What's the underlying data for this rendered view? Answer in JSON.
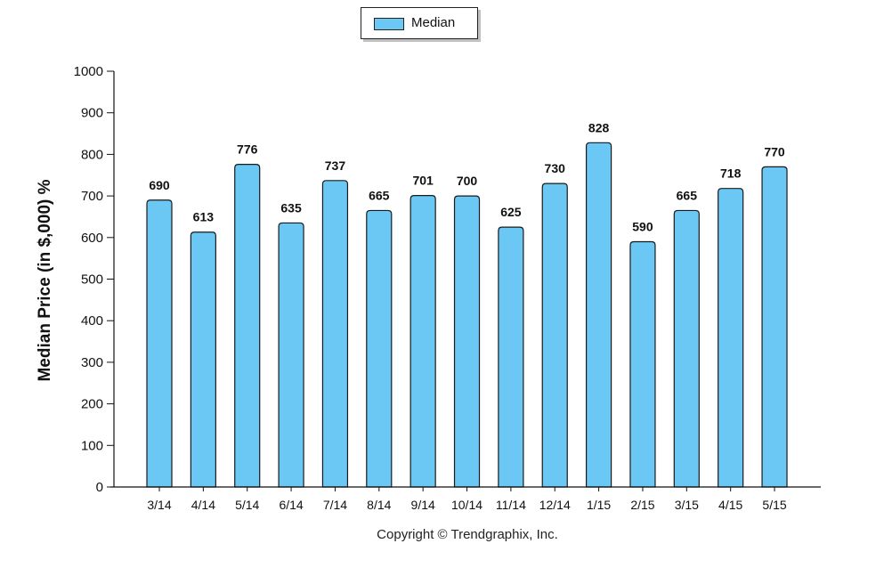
{
  "chart_data": {
    "type": "bar",
    "categories": [
      "3/14",
      "4/14",
      "5/14",
      "6/14",
      "7/14",
      "8/14",
      "9/14",
      "10/14",
      "11/14",
      "12/14",
      "1/15",
      "2/15",
      "3/15",
      "4/15",
      "5/15"
    ],
    "series": [
      {
        "name": "Median",
        "values": [
          690,
          613,
          776,
          635,
          737,
          665,
          701,
          700,
          625,
          730,
          828,
          590,
          665,
          718,
          770
        ]
      }
    ],
    "data_labels": [
      "690",
      "613",
      "776",
      "635",
      "737",
      "665",
      "701",
      "700",
      "625",
      "730",
      "828",
      "590",
      "665",
      "718",
      "770"
    ],
    "ylabel": "Median Price (in $,000) %",
    "xlabel": "",
    "ylim": [
      0,
      1000
    ],
    "yticks": [
      "0",
      "100",
      "200",
      "300",
      "400",
      "500",
      "600",
      "700",
      "800",
      "900",
      "1000"
    ],
    "legend_position": "top-center",
    "grid": false,
    "bar_color": "#6bc8f5"
  },
  "legend": {
    "label": "Median"
  },
  "footer": {
    "copyright": "Copyright © Trendgraphix, Inc."
  }
}
